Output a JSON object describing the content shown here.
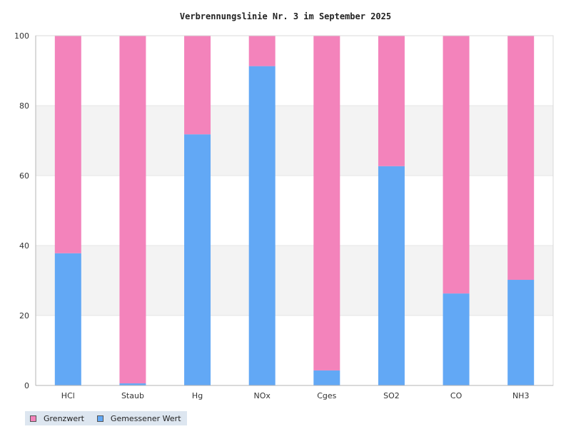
{
  "chart_data": {
    "type": "bar",
    "stacked": true,
    "title": "Verbrennungslinie Nr. 3 im September 2025",
    "categories": [
      "HCl",
      "Staub",
      "Hg",
      "NOx",
      "Cges",
      "SO2",
      "CO",
      "NH3"
    ],
    "series": [
      {
        "name": "Gemessener Wert",
        "color": "#62a8f5",
        "values": [
          37.8,
          0.6,
          71.8,
          91.3,
          4.3,
          62.7,
          26.3,
          30.2
        ]
      },
      {
        "name": "Grenzwert",
        "color": "#f383bb",
        "values": [
          62.2,
          99.4,
          28.2,
          8.7,
          95.7,
          37.3,
          73.7,
          69.8
        ]
      }
    ],
    "ylim": [
      0,
      100
    ],
    "yticks": [
      "0",
      "20",
      "40",
      "60",
      "80",
      "100"
    ],
    "grid": true,
    "legend": {
      "position": "bottom-left",
      "items": [
        {
          "label": "Grenzwert",
          "color": "#f383bb"
        },
        {
          "label": "Gemessener Wert",
          "color": "#62a8f5"
        }
      ]
    }
  }
}
